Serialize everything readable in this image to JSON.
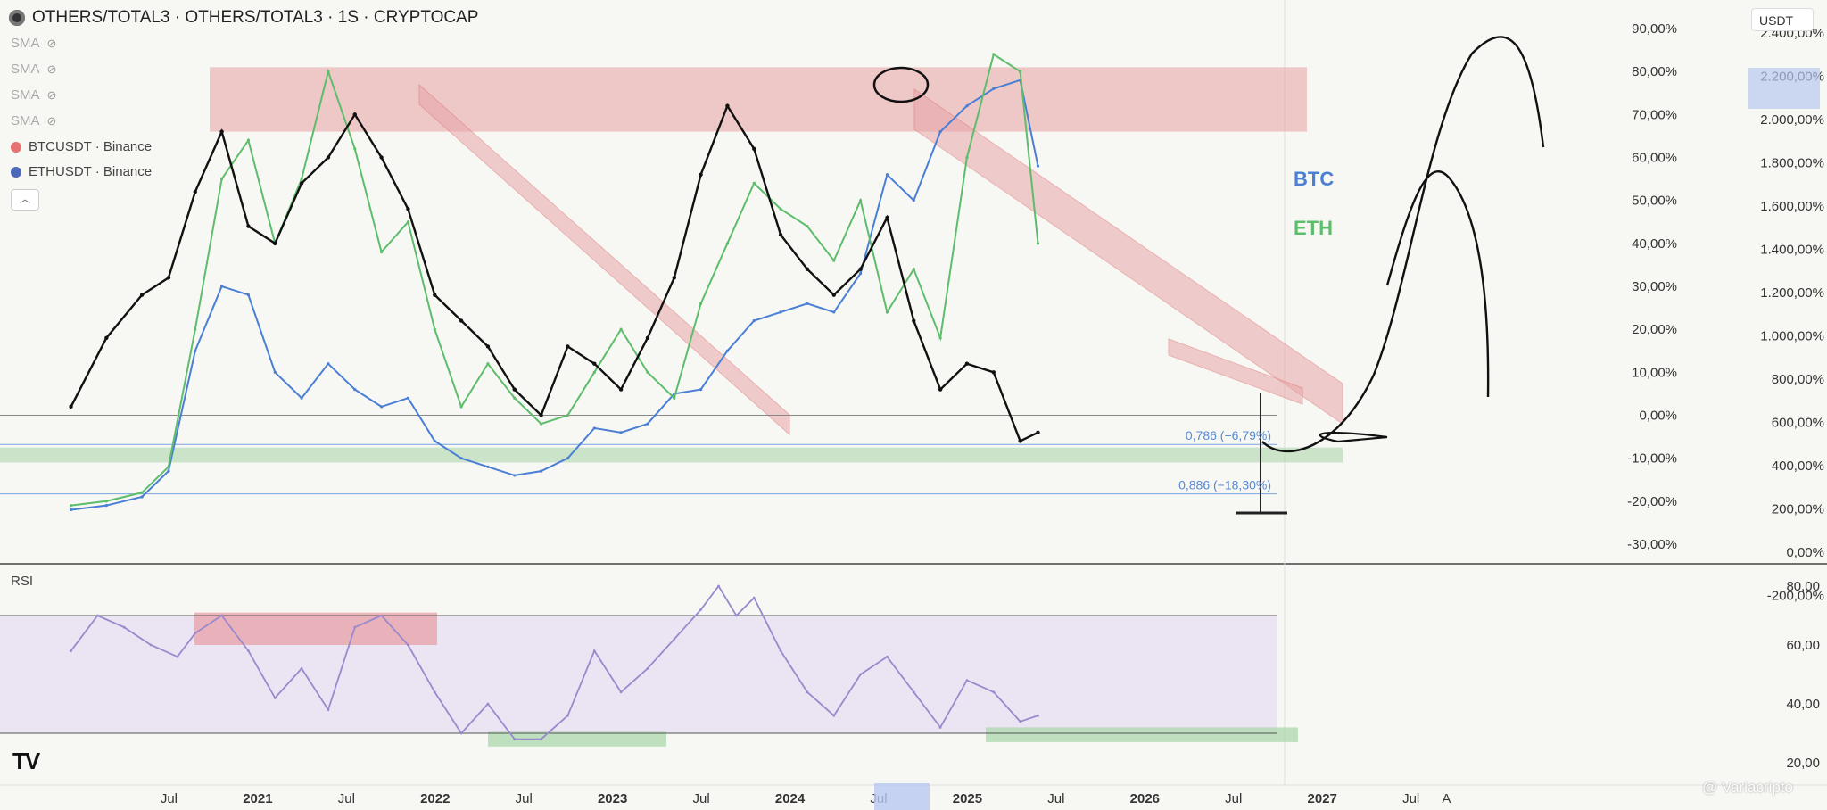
{
  "header": {
    "symbol": "OTHERS/TOTAL3 · OTHERS/TOTAL3 · 1S · CRYPTOCAP"
  },
  "legend": {
    "sma": [
      "SMA",
      "SMA",
      "SMA",
      "SMA"
    ],
    "series": [
      {
        "label": "BTCUSDT · Binance",
        "color": "#e57373"
      },
      {
        "label": "ETHUSDT · Binance",
        "color": "#4a67b8"
      }
    ]
  },
  "unit_selector": "USDT",
  "rsi_label": "RSI",
  "watermark": "@ Variacripto",
  "chart_data": [
    {
      "type": "line",
      "title": "OTHERS/TOTAL3 · OTHERS/TOTAL3 · 1S · CRYPTOCAP",
      "x_labels": [
        "Jul",
        "2021",
        "Jul",
        "2022",
        "Jul",
        "2023",
        "Jul",
        "2024",
        "Jul",
        "2025",
        "Jul",
        "2026",
        "Jul",
        "2027",
        "Jul",
        "A"
      ],
      "y_axis_left": [
        "90,00%",
        "80,00%",
        "70,00%",
        "60,00%",
        "50,00%",
        "40,00%",
        "30,00%",
        "20,00%",
        "10,00%",
        "0,00%",
        "-10,00%",
        "-20,00%",
        "-30,00%"
      ],
      "y_axis_right": [
        "2.400,00%",
        "2.200,00%",
        "2.000,00%",
        "1.800,00%",
        "1.600,00%",
        "1.400,00%",
        "1.200,00%",
        "1.000,00%",
        "800,00%",
        "600,00%",
        "400,00%",
        "200,00%",
        "0,00%",
        "-200,00%"
      ],
      "ylim": [
        -30,
        90
      ],
      "series": [
        {
          "name": "BTC",
          "color": "#4a7fd4",
          "x": [
            2020.4,
            2020.6,
            2020.8,
            2020.95,
            2021.1,
            2021.25,
            2021.4,
            2021.55,
            2021.7,
            2021.85,
            2022.0,
            2022.15,
            2022.3,
            2022.45,
            2022.6,
            2022.75,
            2022.9,
            2023.05,
            2023.2,
            2023.35,
            2023.5,
            2023.65,
            2023.8,
            2023.95,
            2024.1,
            2024.25,
            2024.4,
            2024.55,
            2024.7,
            2024.85,
            2025.0,
            2025.15,
            2025.3,
            2025.45,
            2025.6,
            2025.75,
            2025.85
          ],
          "values": [
            -22,
            -21,
            -19,
            -13,
            15,
            30,
            28,
            10,
            4,
            12,
            6,
            2,
            4,
            -6,
            -10,
            -12,
            -14,
            -13,
            -10,
            -3,
            -4,
            -2,
            5,
            6,
            15,
            22,
            24,
            26,
            24,
            33,
            56,
            50,
            66,
            72,
            76,
            78,
            58
          ]
        },
        {
          "name": "ETH",
          "color": "#5dbd6a",
          "x": [
            2020.4,
            2020.6,
            2020.8,
            2020.95,
            2021.1,
            2021.25,
            2021.4,
            2021.55,
            2021.7,
            2021.85,
            2022.0,
            2022.15,
            2022.3,
            2022.45,
            2022.6,
            2022.75,
            2022.9,
            2023.05,
            2023.2,
            2023.35,
            2023.5,
            2023.65,
            2023.8,
            2023.95,
            2024.1,
            2024.25,
            2024.4,
            2024.55,
            2024.7,
            2024.85,
            2025.0,
            2025.15,
            2025.3,
            2025.45,
            2025.6,
            2025.75,
            2025.85
          ],
          "values": [
            -21,
            -20,
            -18,
            -12,
            20,
            55,
            64,
            40,
            55,
            80,
            62,
            38,
            45,
            20,
            2,
            12,
            4,
            -2,
            0,
            10,
            20,
            10,
            4,
            26,
            40,
            54,
            48,
            44,
            36,
            50,
            24,
            34,
            18,
            60,
            84,
            80,
            40
          ]
        },
        {
          "name": "OTHERS/TOTAL3",
          "color": "#111111",
          "x": [
            2020.4,
            2020.6,
            2020.8,
            2020.95,
            2021.1,
            2021.25,
            2021.4,
            2021.55,
            2021.7,
            2021.85,
            2022.0,
            2022.15,
            2022.3,
            2022.45,
            2022.6,
            2022.75,
            2022.9,
            2023.05,
            2023.2,
            2023.35,
            2023.5,
            2023.65,
            2023.8,
            2023.95,
            2024.1,
            2024.25,
            2024.4,
            2024.55,
            2024.7,
            2024.85,
            2025.0,
            2025.15,
            2025.3,
            2025.45,
            2025.6,
            2025.75,
            2025.85
          ],
          "values": [
            2,
            18,
            28,
            32,
            52,
            66,
            44,
            40,
            54,
            60,
            70,
            60,
            48,
            28,
            22,
            16,
            6,
            0,
            16,
            12,
            6,
            18,
            32,
            56,
            72,
            62,
            42,
            34,
            28,
            34,
            46,
            22,
            6,
            12,
            10,
            -6,
            -4
          ]
        }
      ],
      "annotations": {
        "fib_0786": "0,786 (−6,79%)",
        "fib_0886": "0,886 (−18,30%)",
        "label_btc": "BTC",
        "label_eth": "ETH"
      }
    },
    {
      "type": "line",
      "title": "RSI",
      "y_axis": [
        "80,00",
        "60,00",
        "40,00",
        "20,00"
      ],
      "ylim": [
        20,
        80
      ],
      "series": [
        {
          "name": "RSI",
          "color": "#9a89cc",
          "x": [
            2020.4,
            2020.55,
            2020.7,
            2020.85,
            2021.0,
            2021.1,
            2021.25,
            2021.4,
            2021.55,
            2021.7,
            2021.85,
            2022.0,
            2022.15,
            2022.3,
            2022.45,
            2022.6,
            2022.75,
            2022.9,
            2023.05,
            2023.2,
            2023.35,
            2023.5,
            2023.65,
            2023.8,
            2023.95,
            2024.05,
            2024.15,
            2024.25,
            2024.4,
            2024.55,
            2024.7,
            2024.85,
            2025.0,
            2025.15,
            2025.3,
            2025.45,
            2025.6,
            2025.75,
            2025.85
          ],
          "values": [
            58,
            70,
            66,
            60,
            56,
            64,
            70,
            58,
            42,
            52,
            38,
            66,
            70,
            60,
            44,
            30,
            40,
            28,
            28,
            36,
            58,
            44,
            52,
            62,
            72,
            80,
            70,
            76,
            58,
            44,
            36,
            50,
            56,
            44,
            32,
            48,
            44,
            34,
            36
          ]
        }
      ]
    }
  ]
}
